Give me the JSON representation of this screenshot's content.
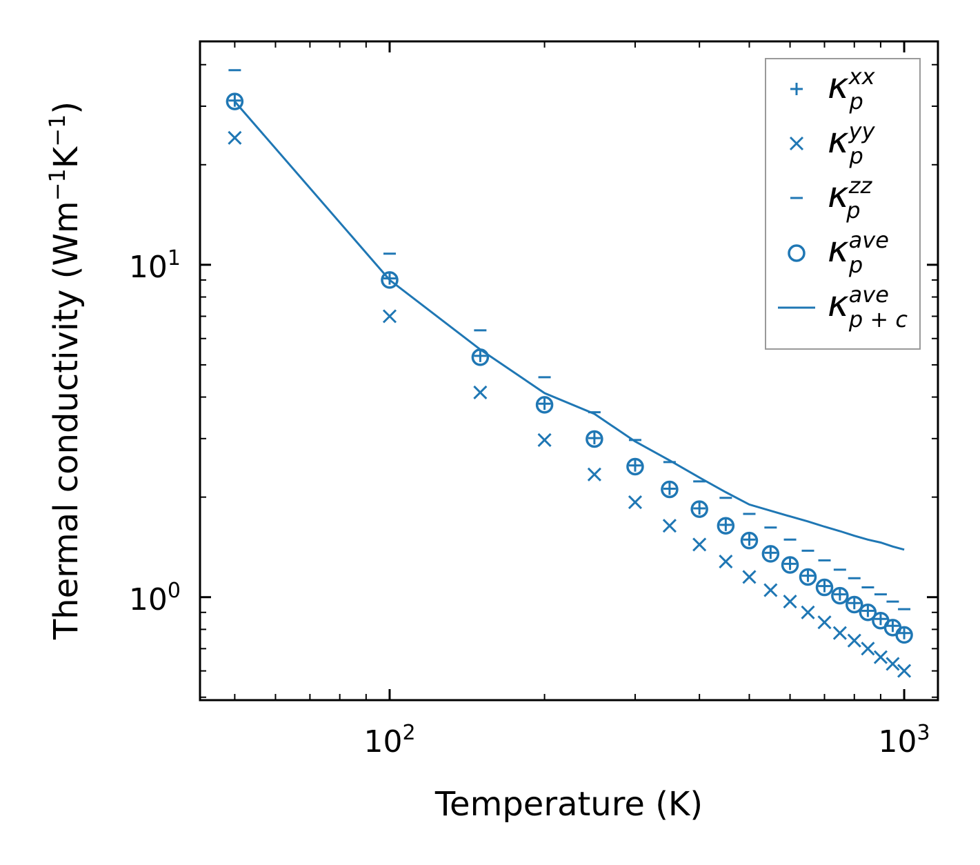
{
  "chart_data": {
    "type": "scatter",
    "title": "",
    "xlabel": "Temperature (K)",
    "ylabel_parts": [
      "Thermal conductivity (Wm",
      "−1",
      "K",
      "−1",
      ")"
    ],
    "xscale": "log",
    "yscale": "log",
    "xlim": [
      42.8,
      1163
    ],
    "ylim": [
      0.49,
      47
    ],
    "x_ticks": [
      {
        "base": "10",
        "exp": "2",
        "value": 100
      },
      {
        "base": "10",
        "exp": "3",
        "value": 1000
      }
    ],
    "y_ticks": [
      {
        "base": "10",
        "exp": "0",
        "value": 1
      },
      {
        "base": "10",
        "exp": "1",
        "value": 10
      }
    ],
    "grid": false,
    "legend_placement": "top-right",
    "color": "#1f77b4",
    "x": [
      50,
      100,
      150,
      200,
      250,
      300,
      350,
      400,
      450,
      500,
      550,
      600,
      650,
      700,
      750,
      800,
      850,
      900,
      950,
      1000
    ],
    "series": [
      {
        "name": "kappa_p^xx",
        "legend": {
          "base": "κ",
          "sub": "p",
          "sup": "xx"
        },
        "marker": "plus",
        "values": [
          31.2,
          9.1,
          5.32,
          3.82,
          3.01,
          2.49,
          2.12,
          1.85,
          1.65,
          1.49,
          1.36,
          1.26,
          1.16,
          1.08,
          1.02,
          0.96,
          0.91,
          0.86,
          0.82,
          0.78
        ]
      },
      {
        "name": "kappa_p^yy",
        "legend": {
          "base": "κ",
          "sub": "p",
          "sup": "yy"
        },
        "marker": "x",
        "values": [
          24.1,
          7.0,
          4.13,
          2.97,
          2.34,
          1.93,
          1.64,
          1.44,
          1.28,
          1.15,
          1.05,
          0.97,
          0.9,
          0.84,
          0.78,
          0.74,
          0.7,
          0.66,
          0.63,
          0.6
        ]
      },
      {
        "name": "kappa_p^zz",
        "legend": {
          "base": "κ",
          "sub": "p",
          "sup": "zz"
        },
        "marker": "hline",
        "values": [
          38.5,
          10.8,
          6.35,
          4.59,
          3.6,
          2.97,
          2.55,
          2.23,
          1.99,
          1.78,
          1.62,
          1.49,
          1.38,
          1.29,
          1.21,
          1.14,
          1.07,
          1.02,
          0.97,
          0.92
        ]
      },
      {
        "name": "kappa_p^ave",
        "legend": {
          "base": "κ",
          "sub": "p",
          "sup": "ave"
        },
        "marker": "circle",
        "values": [
          31.0,
          9.0,
          5.27,
          3.79,
          2.99,
          2.47,
          2.11,
          1.84,
          1.64,
          1.48,
          1.35,
          1.25,
          1.15,
          1.07,
          1.01,
          0.95,
          0.9,
          0.85,
          0.81,
          0.77
        ]
      },
      {
        "name": "kappa_p+c^ave",
        "legend": {
          "base": "κ",
          "sub": "p + c",
          "sup": "ave"
        },
        "marker": "line",
        "values": [
          31.0,
          9.0,
          5.56,
          4.11,
          3.56,
          2.94,
          2.58,
          2.29,
          2.07,
          1.9,
          1.82,
          1.75,
          1.69,
          1.63,
          1.58,
          1.53,
          1.49,
          1.46,
          1.42,
          1.39
        ]
      }
    ]
  }
}
